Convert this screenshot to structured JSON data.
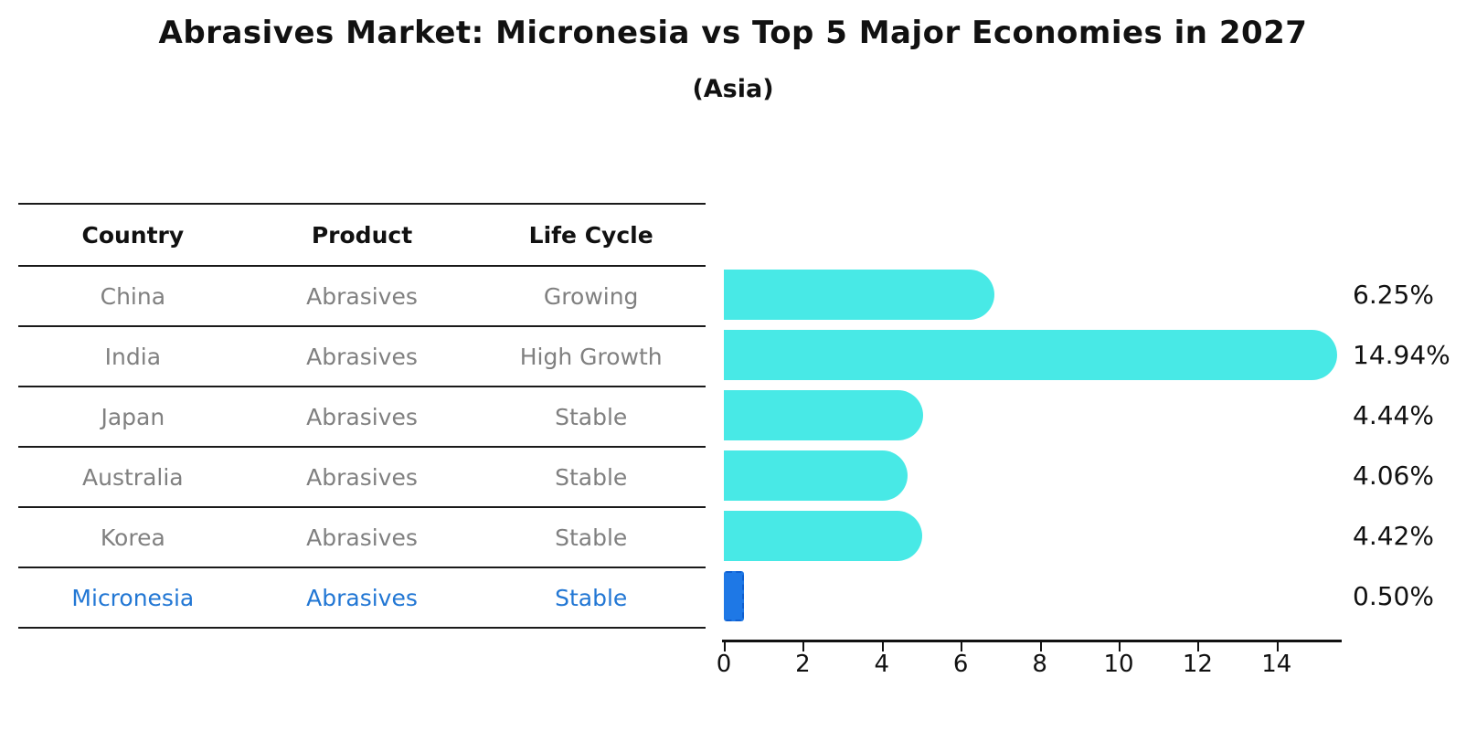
{
  "title": "Abrasives Market: Micronesia vs Top 5 Major Economies in 2027",
  "subtitle": "(Asia)",
  "table": {
    "headers": [
      "Country",
      "Product",
      "Life Cycle"
    ],
    "rows": [
      {
        "country": "China",
        "product": "Abrasives",
        "life_cycle": "Growing",
        "highlighted": false
      },
      {
        "country": "India",
        "product": "Abrasives",
        "life_cycle": "High Growth",
        "highlighted": false
      },
      {
        "country": "Japan",
        "product": "Abrasives",
        "life_cycle": "Stable",
        "highlighted": false
      },
      {
        "country": "Australia",
        "product": "Abrasives",
        "life_cycle": "Stable",
        "highlighted": false
      },
      {
        "country": "Korea",
        "product": "Abrasives",
        "life_cycle": "Stable",
        "highlighted": false
      },
      {
        "country": "Micronesia",
        "product": "Abrasives",
        "life_cycle": "Stable",
        "highlighted": true
      }
    ]
  },
  "chart_data": {
    "type": "bar",
    "orientation": "horizontal",
    "categories": [
      "China",
      "India",
      "Japan",
      "Australia",
      "Korea",
      "Micronesia"
    ],
    "values": [
      6.25,
      14.94,
      4.44,
      4.06,
      4.42,
      0.5
    ],
    "value_labels": [
      "6.25%",
      "14.94%",
      "4.44%",
      "4.06%",
      "4.42%",
      "0.50%"
    ],
    "highlight_index": 5,
    "xlim": [
      0,
      15.65
    ],
    "x_ticks": [
      0,
      2,
      4,
      6,
      8,
      10,
      12,
      14
    ],
    "grid": "off",
    "legend": "none",
    "bar_color": "#48e9e6",
    "highlight_bar_color": "#1e78e6",
    "highlight_text_color": "#2277d4"
  }
}
